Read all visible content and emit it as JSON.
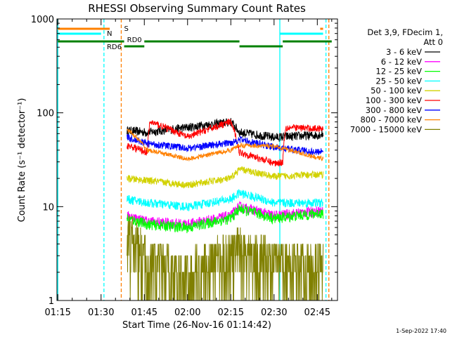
{
  "chart_data": {
    "type": "line",
    "title": "RHESSI Observing Summary Count Rates",
    "xlabel": "Start Time (26-Nov-16 01:14:42)",
    "ylabel": "Count Rate (s⁻¹ detector⁻¹)",
    "y_scale": "log",
    "ylim": [
      1,
      1000
    ],
    "xlim": [
      "01:14:42",
      "02:52:00"
    ],
    "x_ticks": [
      "01:15",
      "01:30",
      "01:45",
      "02:00",
      "02:15",
      "02:30",
      "02:45"
    ],
    "y_ticks": [
      "1",
      "10",
      "100",
      "1000"
    ],
    "legend_position": "right",
    "legend_header": [
      "Det 3,9, FDecim 1,",
      "Att 0"
    ],
    "timestamp": "1-Sep-2022 17:40",
    "flag_labels": {
      "saa": "S",
      "night": "N",
      "rd0": "RD0",
      "rd6": "RD6"
    },
    "flags": {
      "saa": {
        "color": "#ff8000",
        "segments": [
          [
            "01:15",
            "01:33"
          ],
          [
            "02:46",
            "02:47"
          ]
        ]
      },
      "night": {
        "color": "#00ffff",
        "segments": [
          [
            "01:15",
            "01:30"
          ],
          [
            "02:32",
            "02:47"
          ]
        ]
      },
      "rd0": {
        "color": "#008000",
        "segments": [
          [
            "01:15",
            "01:38"
          ],
          [
            "01:45",
            "02:18"
          ],
          [
            "02:33",
            "02:50"
          ]
        ]
      },
      "rd6": {
        "color": "#008000",
        "segments": [
          [
            "01:38",
            "01:45"
          ],
          [
            "02:18",
            "02:33"
          ]
        ]
      }
    },
    "vlines": [
      {
        "time": "01:15",
        "color": "#00ffff",
        "style": "solid"
      },
      {
        "time": "01:31",
        "color": "#00ffff",
        "style": "dashed"
      },
      {
        "time": "01:37",
        "color": "#ff8000",
        "style": "dashed"
      },
      {
        "time": "02:32",
        "color": "#00ffff",
        "style": "solid"
      },
      {
        "time": "02:49",
        "color": "#ff8000",
        "style": "dashed"
      },
      {
        "time": "02:48",
        "color": "#00ffff",
        "style": "dashed"
      }
    ],
    "series": [
      {
        "name": "3 - 6 keV",
        "color": "#000000",
        "noise": 0.05,
        "points": [
          [
            "01:39",
            65
          ],
          [
            "01:46",
            62
          ],
          [
            "02:00",
            70
          ],
          [
            "02:15",
            80
          ],
          [
            "02:18",
            62
          ],
          [
            "02:30",
            55
          ],
          [
            "02:45",
            58
          ],
          [
            "02:47",
            60
          ]
        ]
      },
      {
        "name": "6 - 12 keV",
        "color": "#ff00ff",
        "noise": 0.06,
        "points": [
          [
            "01:39",
            8
          ],
          [
            "01:46",
            7
          ],
          [
            "02:00",
            6.5
          ],
          [
            "02:15",
            8
          ],
          [
            "02:18",
            10
          ],
          [
            "02:30",
            8
          ],
          [
            "02:45",
            9
          ],
          [
            "02:47",
            9
          ]
        ]
      },
      {
        "name": "12 - 25 keV",
        "color": "#00ff00",
        "noise": 0.06,
        "points": [
          [
            "01:39",
            7.5
          ],
          [
            "01:46",
            6.5
          ],
          [
            "02:00",
            6
          ],
          [
            "02:15",
            7.5
          ],
          [
            "02:18",
            9.5
          ],
          [
            "02:30",
            7.5
          ],
          [
            "02:45",
            8.5
          ],
          [
            "02:47",
            8.5
          ]
        ]
      },
      {
        "name": "25 - 50 keV",
        "color": "#00ffff",
        "noise": 0.05,
        "points": [
          [
            "01:39",
            12
          ],
          [
            "01:46",
            11
          ],
          [
            "02:00",
            10
          ],
          [
            "02:15",
            12
          ],
          [
            "02:18",
            14
          ],
          [
            "02:30",
            11
          ],
          [
            "02:45",
            11
          ],
          [
            "02:47",
            11
          ]
        ]
      },
      {
        "name": "50 - 100 keV",
        "color": "#d2d200",
        "noise": 0.04,
        "points": [
          [
            "01:39",
            20
          ],
          [
            "01:46",
            19
          ],
          [
            "02:00",
            17
          ],
          [
            "02:15",
            20
          ],
          [
            "02:18",
            25
          ],
          [
            "02:30",
            21
          ],
          [
            "02:45",
            22
          ],
          [
            "02:47",
            22
          ]
        ]
      },
      {
        "name": "100 - 300 keV",
        "color": "#ff0000",
        "noise": 0.04,
        "points": [
          [
            "01:39",
            45
          ],
          [
            "01:46",
            38
          ],
          [
            "01:47",
            80
          ],
          [
            "02:00",
            55
          ],
          [
            "02:15",
            80
          ],
          [
            "02:18",
            38
          ],
          [
            "02:30",
            29
          ],
          [
            "02:33",
            30
          ],
          [
            "02:34",
            70
          ],
          [
            "02:45",
            68
          ],
          [
            "02:47",
            70
          ]
        ]
      },
      {
        "name": "300 - 800 keV",
        "color": "#0000ff",
        "noise": 0.04,
        "points": [
          [
            "01:39",
            55
          ],
          [
            "01:46",
            47
          ],
          [
            "02:00",
            42
          ],
          [
            "02:15",
            48
          ],
          [
            "02:18",
            52
          ],
          [
            "02:30",
            43
          ],
          [
            "02:45",
            38
          ],
          [
            "02:47",
            40
          ]
        ]
      },
      {
        "name": "800 - 7000 keV",
        "color": "#ff8000",
        "noise": 0.025,
        "points": [
          [
            "01:39",
            67
          ],
          [
            "01:46",
            40
          ],
          [
            "02:00",
            32
          ],
          [
            "02:15",
            40
          ],
          [
            "02:18",
            45
          ],
          [
            "02:30",
            44
          ],
          [
            "02:45",
            33
          ],
          [
            "02:47",
            33
          ]
        ]
      },
      {
        "name": "7000 - 15000 keV",
        "color": "#808000",
        "noise": 0.35,
        "points": [
          [
            "01:39",
            5
          ],
          [
            "01:46",
            2.5
          ],
          [
            "02:00",
            1.8
          ],
          [
            "02:15",
            3
          ],
          [
            "02:18",
            3.5
          ],
          [
            "02:30",
            2.5
          ],
          [
            "02:45",
            2.5
          ],
          [
            "02:47",
            2.5
          ]
        ]
      }
    ]
  }
}
